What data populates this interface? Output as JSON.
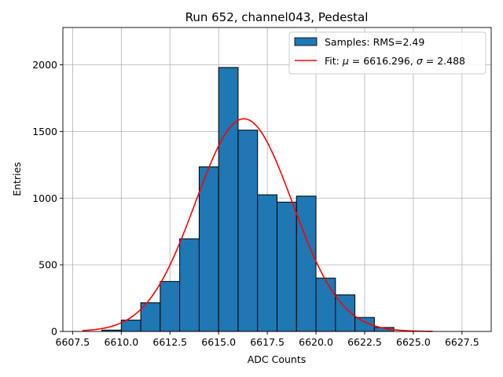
{
  "chart_data": {
    "type": "bar",
    "title": "Run 652, channel043, Pedestal",
    "xlabel": "ADC Counts",
    "ylabel": "Entries",
    "xlim": [
      6607.0,
      6629.0
    ],
    "ylim": [
      0,
      2280
    ],
    "xticks": [
      6607.5,
      6610.0,
      6612.5,
      6615.0,
      6617.5,
      6620.0,
      6622.5,
      6625.0,
      6627.5
    ],
    "xtick_labels": [
      "6607.5",
      "6610.0",
      "6612.5",
      "6615.0",
      "6617.5",
      "6620.0",
      "6622.5",
      "6625.0",
      "6627.5"
    ],
    "yticks": [
      0,
      500,
      1000,
      1500,
      2000
    ],
    "ytick_labels": [
      "0",
      "500",
      "1000",
      "1500",
      "2000"
    ],
    "grid": true,
    "legend_position": "top-right",
    "histogram": {
      "name": "Samples: RMS=2.49",
      "color": "#1f77b4",
      "bin_edges": [
        6609,
        6610,
        6611,
        6612,
        6613,
        6614,
        6615,
        6616,
        6617,
        6618,
        6619,
        6620,
        6621,
        6622,
        6623,
        6624
      ],
      "counts": [
        10,
        85,
        215,
        375,
        695,
        1235,
        1980,
        1510,
        1025,
        970,
        1015,
        400,
        275,
        105,
        30
      ]
    },
    "fit": {
      "name": "Fit: μ = 6616.296, σ = 2.488",
      "label_prefix": "Fit: ",
      "mu_label": "6616.296",
      "sigma_label": "2.488",
      "color": "#ff0000",
      "mu": 6616.296,
      "sigma": 2.488,
      "amplitude": 1595,
      "x_range": [
        6608.0,
        6626.0
      ]
    }
  }
}
